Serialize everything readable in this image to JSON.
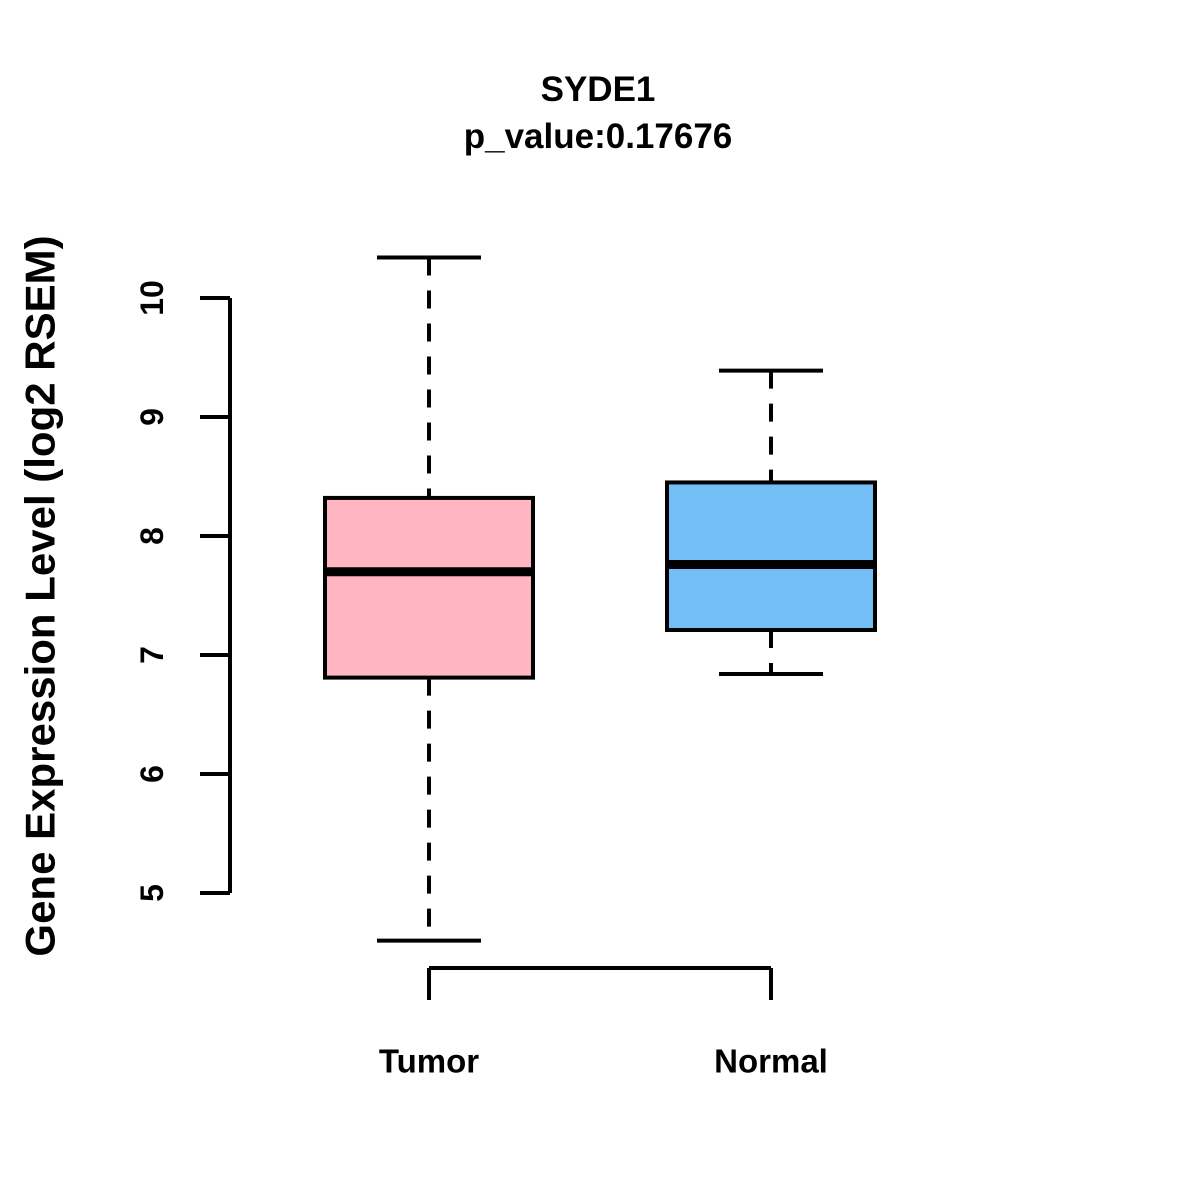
{
  "title": "SYDE1",
  "subtitle": "p_value:0.17676",
  "chart_data": {
    "type": "box",
    "title": "SYDE1",
    "subtitle": "p_value:0.17676",
    "xlabel": "",
    "ylabel": "Gene Expression Level (log2 RSEM)",
    "ylim": [
      5,
      10
    ],
    "y_ticks": [
      5,
      6,
      7,
      8,
      9,
      10
    ],
    "grid": "off",
    "legend": "none",
    "groups": [
      {
        "label": "Tumor",
        "color": "#FFB6C1",
        "whisker_low": 4.6,
        "q1": 6.81,
        "median": 7.7,
        "q3": 8.32,
        "whisker_high": 10.34
      },
      {
        "label": "Normal",
        "color": "#74BEF6",
        "whisker_low": 6.84,
        "q1": 7.21,
        "median": 7.76,
        "q3": 8.45,
        "whisker_high": 9.39
      }
    ],
    "stroke_color": "#000000",
    "background": "#FFFFFF"
  }
}
